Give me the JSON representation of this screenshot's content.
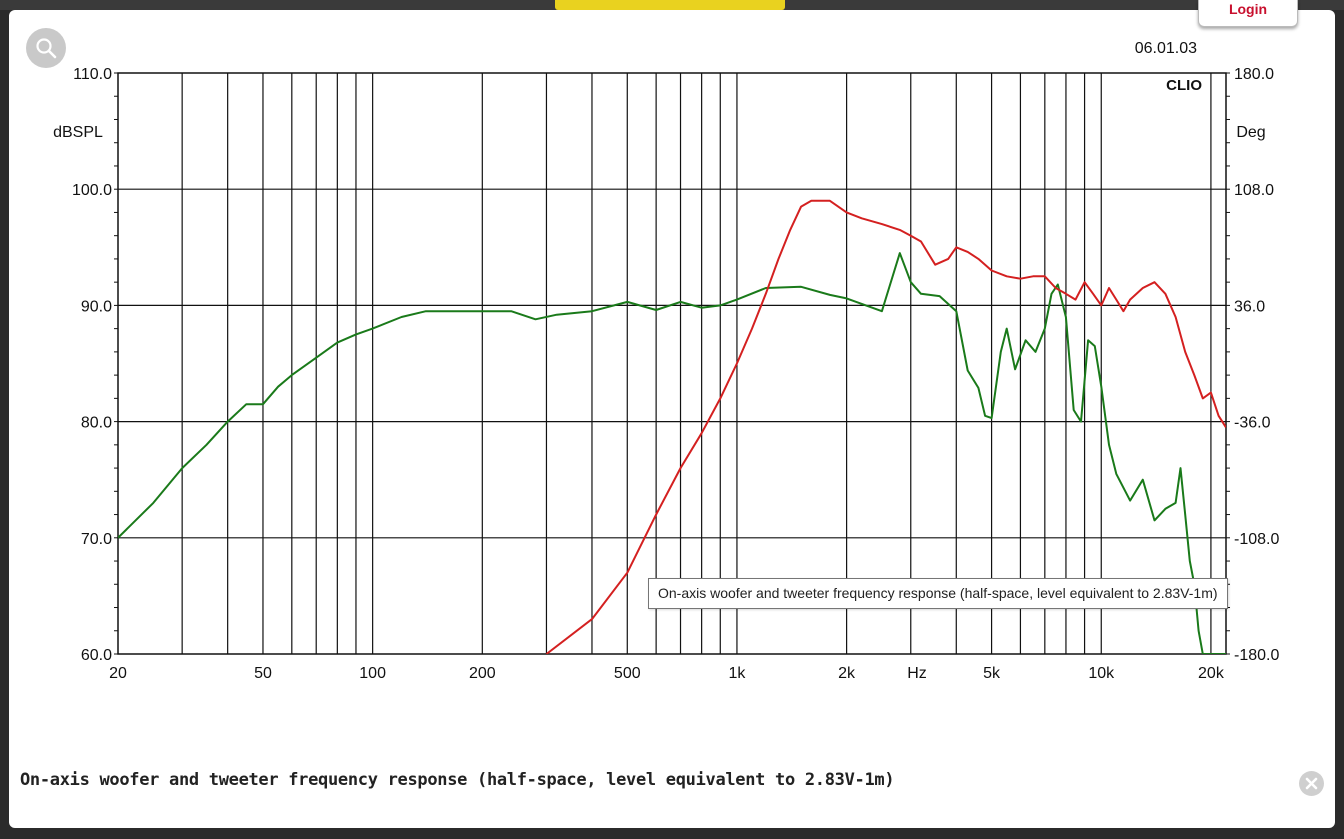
{
  "header": {
    "login_label": "Login"
  },
  "caption": "On-axis woofer and tweeter frequency response (half-space, level equivalent to 2.83V-1m)",
  "tooltip": "On-axis woofer and tweeter frequency response (half-space, level equivalent to 2.83V-1m)",
  "icons": {
    "zoom": "search-icon",
    "close": "close-icon"
  },
  "chart_data": {
    "type": "line",
    "date_label": "06.01.03",
    "brand_label": "CLIO",
    "ylabel": "dBSPL",
    "ylabel_right": "Deg",
    "x_unit_label": "Hz",
    "ylim": [
      60,
      110
    ],
    "ylim_right": [
      -180,
      180
    ],
    "xlim": [
      20,
      22000
    ],
    "xscale": "log",
    "grid": true,
    "y_ticks": [
      "110.0",
      "100.0",
      "90.0",
      "80.0",
      "70.0",
      "60.0"
    ],
    "y_ticks_right": [
      "180.0",
      "108.0",
      "36.0",
      "-36.0",
      "-108.0",
      "-180.0"
    ],
    "x_ticks": [
      {
        "label": "20",
        "value": 20
      },
      {
        "label": "50",
        "value": 50
      },
      {
        "label": "100",
        "value": 100
      },
      {
        "label": "200",
        "value": 200
      },
      {
        "label": "500",
        "value": 500
      },
      {
        "label": "1k",
        "value": 1000
      },
      {
        "label": "2k",
        "value": 2000
      },
      {
        "label": "5k",
        "value": 5000
      },
      {
        "label": "10k",
        "value": 10000
      },
      {
        "label": "20k",
        "value": 20000
      }
    ],
    "series": [
      {
        "color": "#1a7a1a",
        "x": [
          20,
          25,
          30,
          35,
          40,
          45,
          50,
          55,
          60,
          70,
          80,
          90,
          100,
          120,
          140,
          160,
          200,
          240,
          280,
          320,
          400,
          500,
          600,
          700,
          800,
          900,
          1000,
          1200,
          1500,
          1800,
          2000,
          2500,
          2800,
          3000,
          3200,
          3600,
          4000,
          4300,
          4600,
          4800,
          5000,
          5300,
          5500,
          5800,
          6200,
          6600,
          7000,
          7300,
          7600,
          8000,
          8400,
          8800,
          9200,
          9600,
          10000,
          10500,
          11000,
          12000,
          13000,
          14000,
          15000,
          16000,
          16500,
          17000,
          17500,
          18000,
          18500,
          19000,
          19500,
          20000,
          20500,
          21000,
          21500,
          22000
        ],
        "y": [
          70,
          73,
          76,
          78,
          80,
          81.5,
          81.5,
          83,
          84,
          85.5,
          86.8,
          87.5,
          88,
          89,
          89.5,
          89.5,
          89.5,
          89.5,
          88.8,
          89.2,
          89.5,
          90.3,
          89.6,
          90.3,
          89.8,
          90,
          90.5,
          91.5,
          91.6,
          90.9,
          90.6,
          89.5,
          94.5,
          92,
          91,
          90.8,
          89.5,
          84.4,
          82.9,
          80.5,
          80.3,
          86,
          88,
          84.5,
          87,
          86,
          88,
          91,
          91.8,
          89,
          81,
          80,
          87,
          86.5,
          83,
          78,
          75.5,
          73.2,
          75,
          71.5,
          72.5,
          73,
          76,
          72,
          68,
          66,
          62,
          60,
          60,
          60,
          60,
          60,
          60,
          60
        ],
        "series_note": ""
      },
      {
        "color": "#d42020",
        "x": [
          300,
          400,
          500,
          600,
          700,
          800,
          900,
          1000,
          1100,
          1200,
          1300,
          1400,
          1500,
          1600,
          1800,
          2000,
          2200,
          2500,
          2800,
          3000,
          3200,
          3500,
          3800,
          4000,
          4300,
          4600,
          5000,
          5500,
          6000,
          6500,
          7000,
          7500,
          8000,
          8500,
          9000,
          9500,
          10000,
          10500,
          11000,
          11500,
          12000,
          13000,
          14000,
          15000,
          16000,
          17000,
          18000,
          19000,
          20000,
          21000,
          22000
        ],
        "y": [
          60,
          63,
          67,
          72,
          76,
          79,
          82,
          85,
          88,
          91,
          94,
          96.5,
          98.5,
          99,
          99,
          98,
          97.5,
          97,
          96.5,
          96,
          95.5,
          93.5,
          94,
          95,
          94.6,
          94,
          93,
          92.5,
          92.3,
          92.5,
          92.5,
          91.5,
          91,
          90.5,
          92,
          91,
          90,
          91.5,
          90.5,
          89.5,
          90.5,
          91.5,
          92,
          91,
          89,
          86,
          84,
          82,
          82.5,
          80.5,
          79.5
        ]
      }
    ]
  }
}
